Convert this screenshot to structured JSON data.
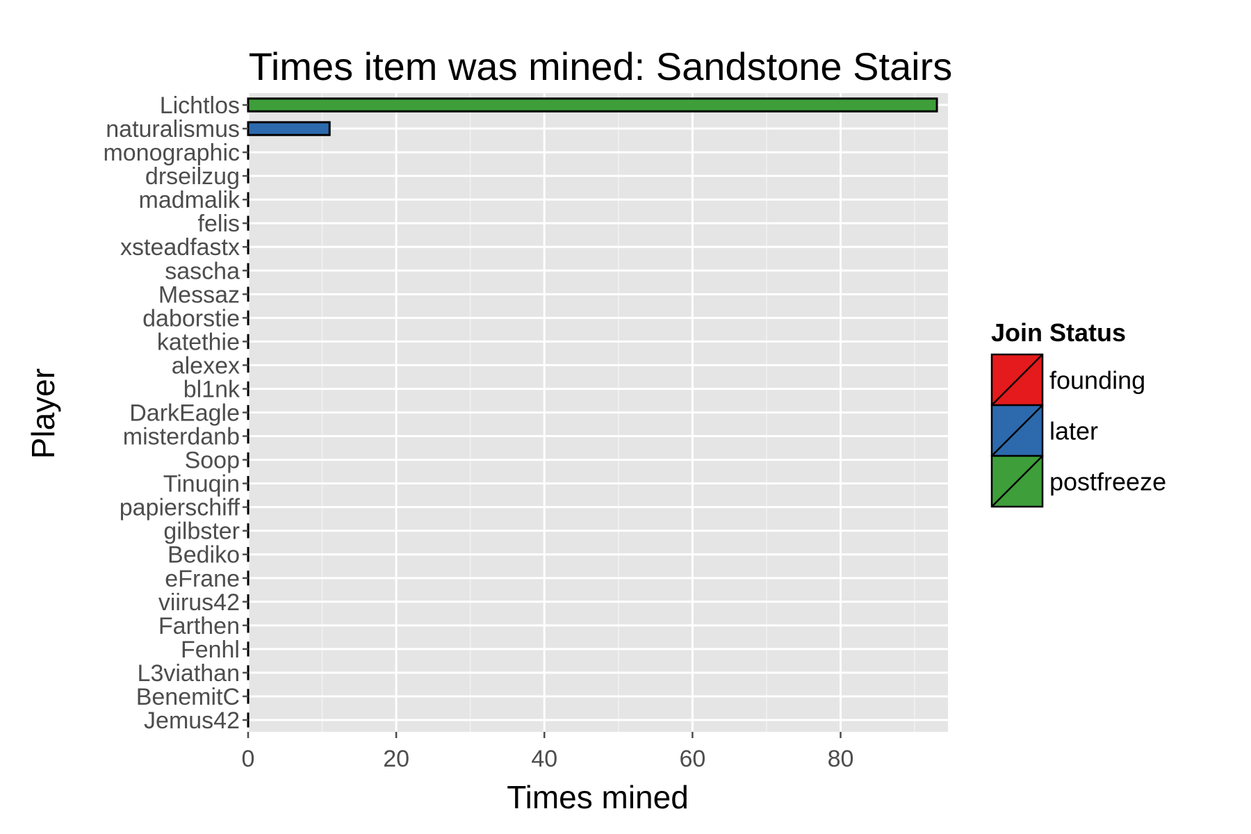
{
  "chart_data": {
    "type": "bar",
    "orientation": "horizontal",
    "title": "Times item was mined: Sandstone Stairs",
    "xlabel": "Times mined",
    "ylabel": "Player",
    "xlim": [
      0,
      94.5
    ],
    "x_ticks": [
      0,
      20,
      40,
      60,
      80
    ],
    "grid": true,
    "legend": {
      "title": "Join Status",
      "placement": "right",
      "entries": [
        {
          "label": "founding",
          "color": "#e41a1c"
        },
        {
          "label": "later",
          "color": "#2c6aad"
        },
        {
          "label": "postfreeze",
          "color": "#3e9e3a"
        }
      ]
    },
    "categories": [
      "Lichtlos",
      "naturalismus",
      "monographic",
      "drseilzug",
      "madmalik",
      "felis",
      "xsteadfastx",
      "sascha",
      "Messaz",
      "daborstie",
      "katethie",
      "alexex",
      "bl1nk",
      "DarkEagle",
      "misterdanb",
      "Soop",
      "Tinuqin",
      "papierschiff",
      "gilbster",
      "Bediko",
      "eFrane",
      "viirus42",
      "Farthen",
      "Fenhl",
      "L3viathan",
      "BenemitC",
      "Jemus42"
    ],
    "values": [
      93,
      11,
      0,
      0,
      0,
      0,
      0,
      0,
      0,
      0,
      0,
      0,
      0,
      0,
      0,
      0,
      0,
      0,
      0,
      0,
      0,
      0,
      0,
      0,
      0,
      0,
      0
    ],
    "series_status": [
      "postfreeze",
      "later",
      "founding",
      "founding",
      "founding",
      "founding",
      "founding",
      "founding",
      "founding",
      "founding",
      "founding",
      "founding",
      "founding",
      "founding",
      "founding",
      "founding",
      "founding",
      "founding",
      "founding",
      "founding",
      "founding",
      "founding",
      "founding",
      "founding",
      "founding",
      "founding",
      "founding"
    ]
  }
}
